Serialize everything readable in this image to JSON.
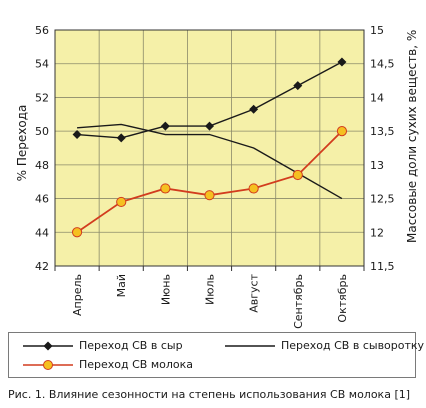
{
  "chart_data": {
    "type": "line",
    "categories": [
      "Апрель",
      "Май",
      "Июнь",
      "Июль",
      "Август",
      "Сентябрь",
      "Октябрь"
    ],
    "y_left": {
      "label": "% Перехода",
      "range": [
        42,
        56
      ],
      "ticks": [
        "42",
        "44",
        "46",
        "48",
        "50",
        "52",
        "54",
        "56"
      ]
    },
    "y_right": {
      "label": "Массовые доли сухих веществ, %",
      "range": [
        11.5,
        15
      ],
      "ticks": [
        "11,5",
        "12",
        "12,5",
        "13",
        "13,5",
        "14",
        "14,5",
        "15"
      ]
    },
    "grid": true,
    "plot_background": "#f5f0a8",
    "series": [
      {
        "name": "Переход СВ в сыр",
        "axis": "left",
        "color": "#1a1a1a",
        "marker": "diamond",
        "values": [
          49.8,
          49.6,
          50.3,
          50.3,
          51.3,
          52.7,
          54.1
        ]
      },
      {
        "name": "Переход СВ в сыворотку",
        "axis": "left",
        "color": "#1a1a1a",
        "marker": "none",
        "values": [
          50.2,
          50.4,
          49.8,
          49.8,
          49.0,
          47.5,
          46.0
        ]
      },
      {
        "name": "Переход СВ молока",
        "axis": "right",
        "color": "#d23c1e",
        "marker": "circle",
        "marker_fill": "#f5c020",
        "values": [
          12.0,
          12.45,
          12.65,
          12.55,
          12.65,
          12.85,
          13.5
        ]
      }
    ]
  },
  "legend": {
    "placement": "bottom",
    "items": [
      "Переход СВ в сыр",
      "Переход СВ в сыворотку",
      "Переход СВ молока"
    ]
  },
  "caption": "Рис. 1. Влияние сезонности на степень использования СВ молока [1]"
}
